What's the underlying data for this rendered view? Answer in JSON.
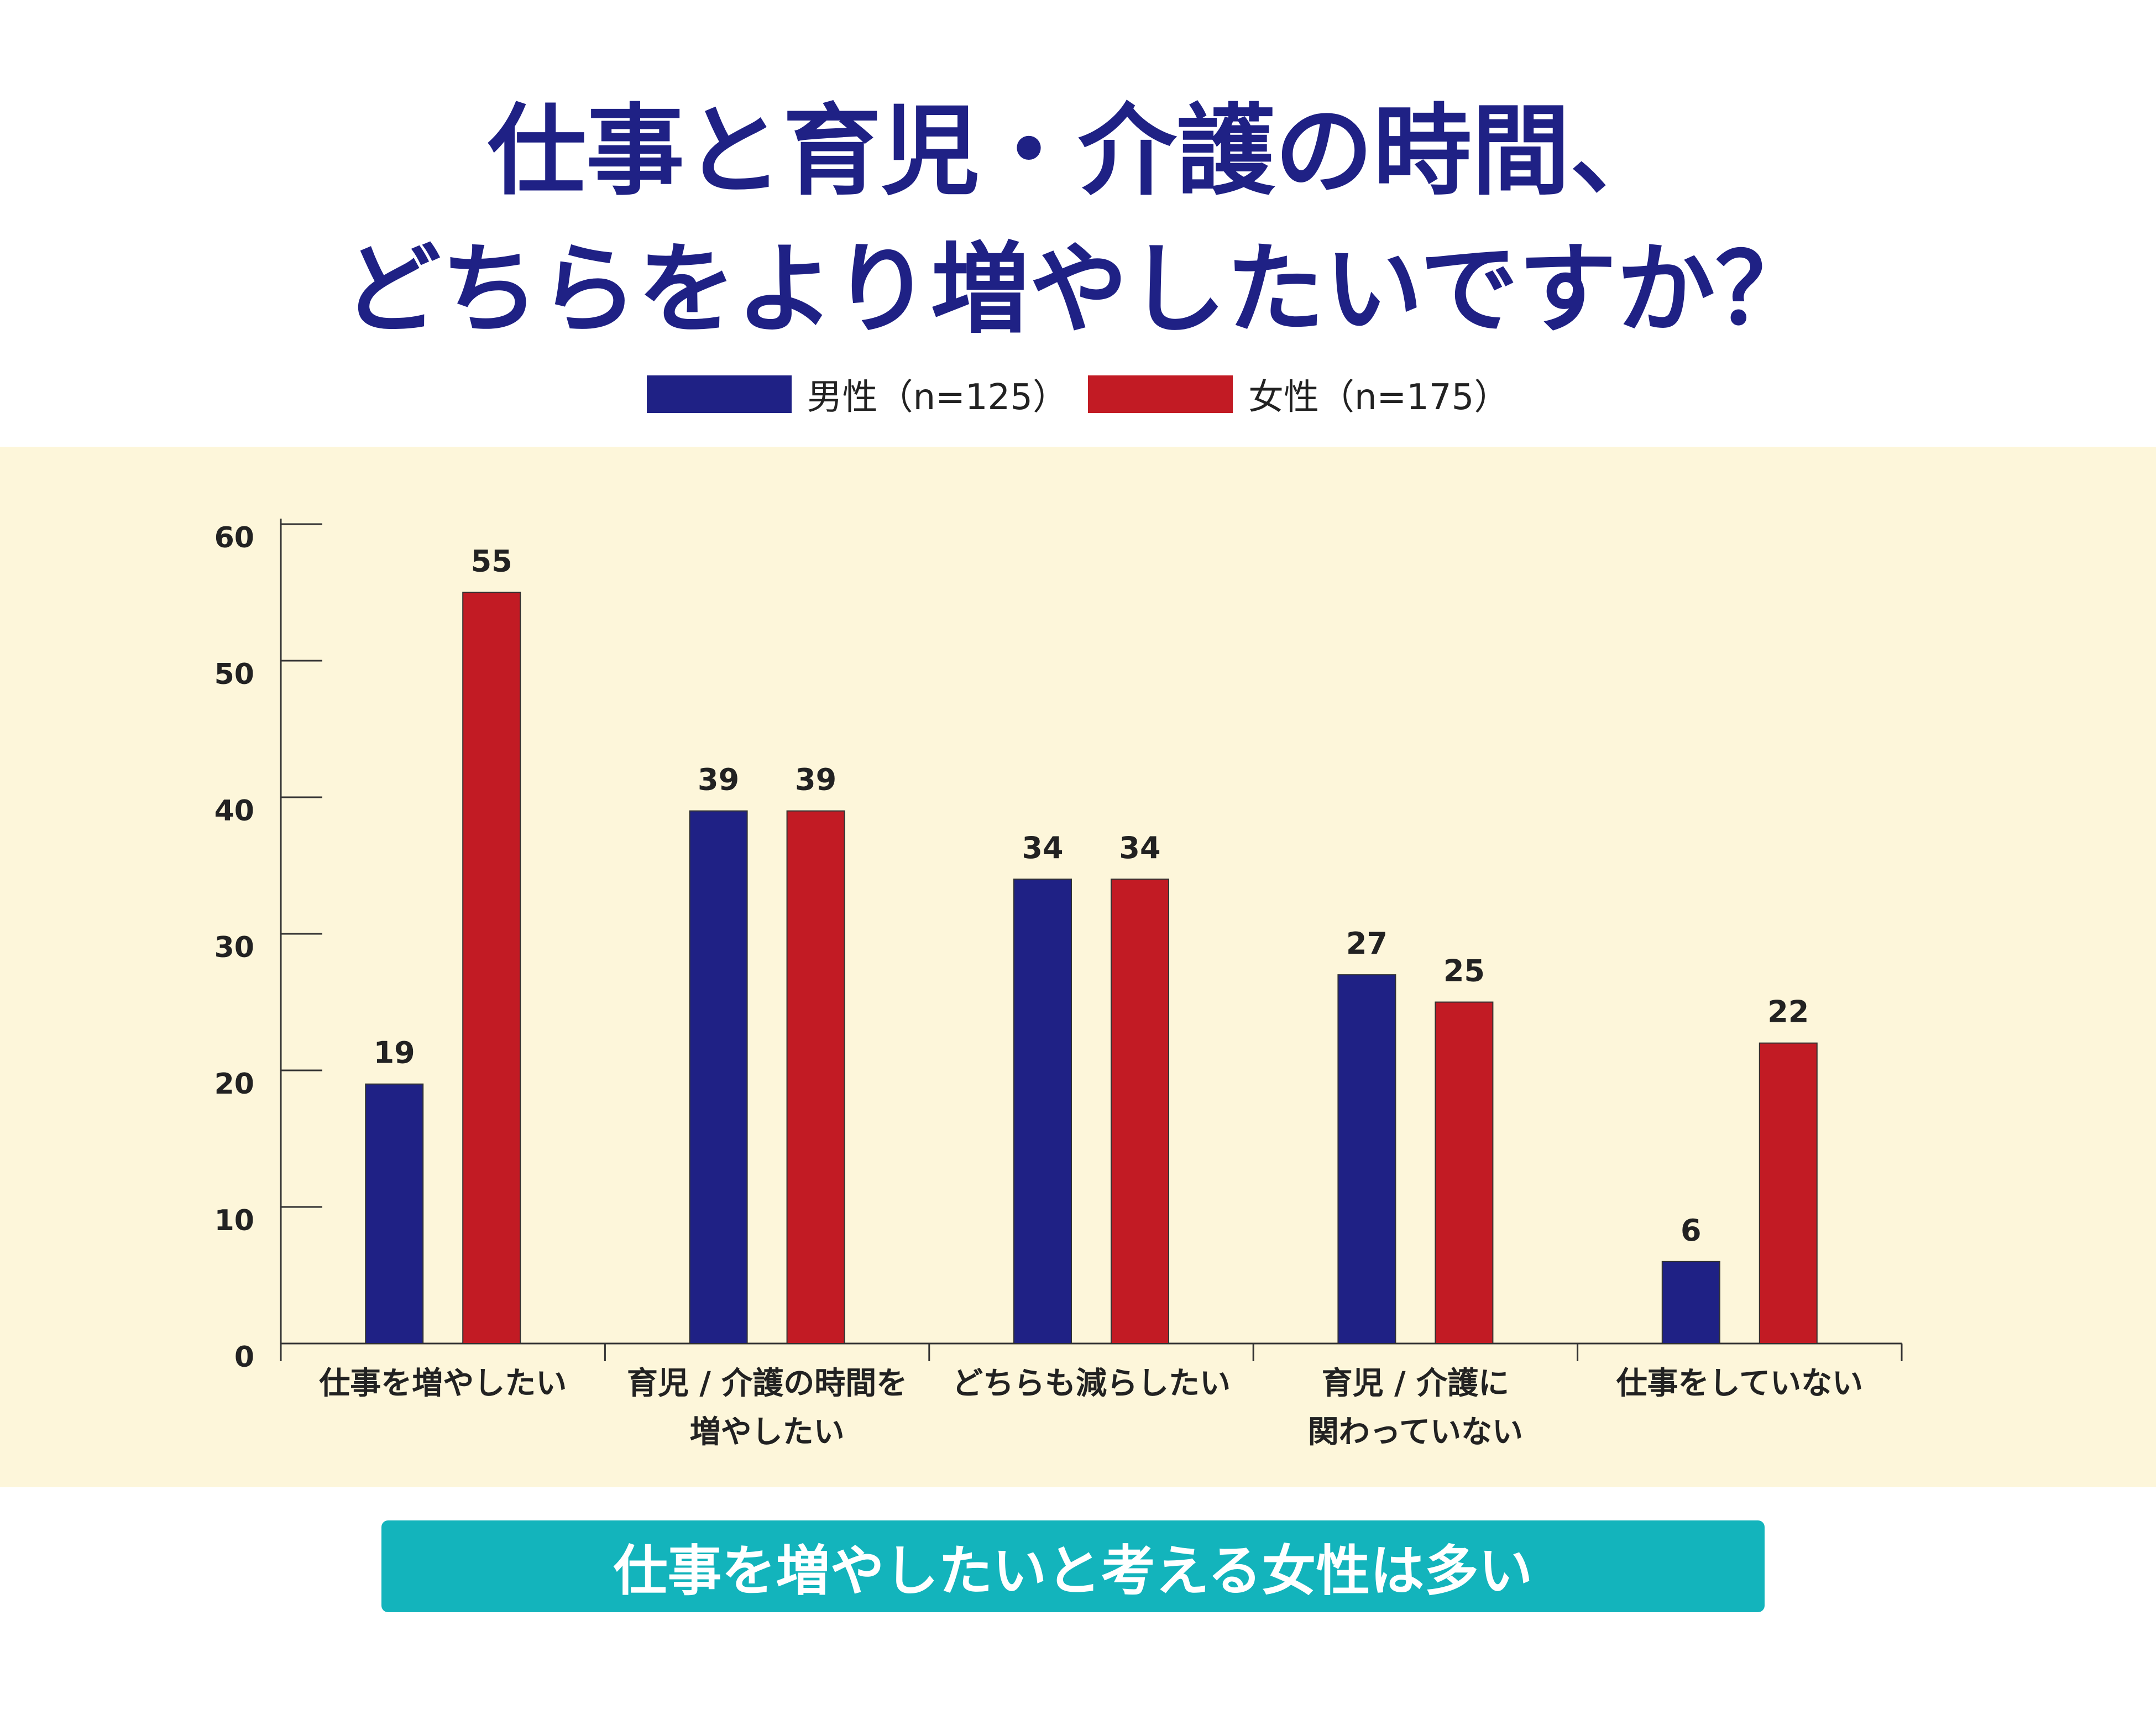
{
  "title": {
    "line1": "仕事と育児・介護の時間、",
    "line2": "どちらをより増やしたいですか？"
  },
  "legend": [
    {
      "label": "男性（n=125）",
      "color": "#1f2185"
    },
    {
      "label": "女性（n=175）",
      "color": "#c21b24"
    }
  ],
  "footer": {
    "text": "仕事を増やしたいと考える女性は多い"
  },
  "chart_data": {
    "type": "bar",
    "title": "仕事と育児・介護の時間、どちらをより増やしたいですか？",
    "xlabel": "",
    "ylabel": "",
    "ylim": [
      0,
      60
    ],
    "yticks": [
      "0",
      "10",
      "20",
      "30",
      "40",
      "50",
      "60"
    ],
    "categories": [
      [
        "仕事を増やしたい"
      ],
      [
        "育児 / 介護の時間を",
        "増やしたい"
      ],
      [
        "どちらも減らしたい"
      ],
      [
        "育児 / 介護に",
        "関わっていない"
      ],
      [
        "仕事をしていない"
      ]
    ],
    "series": [
      {
        "name": "男性（n=125）",
        "color": "#1f2185",
        "values": [
          19,
          39,
          34,
          27,
          6
        ]
      },
      {
        "name": "女性（n=175）",
        "color": "#c21b24",
        "values": [
          55,
          39,
          34,
          25,
          22
        ]
      }
    ]
  }
}
